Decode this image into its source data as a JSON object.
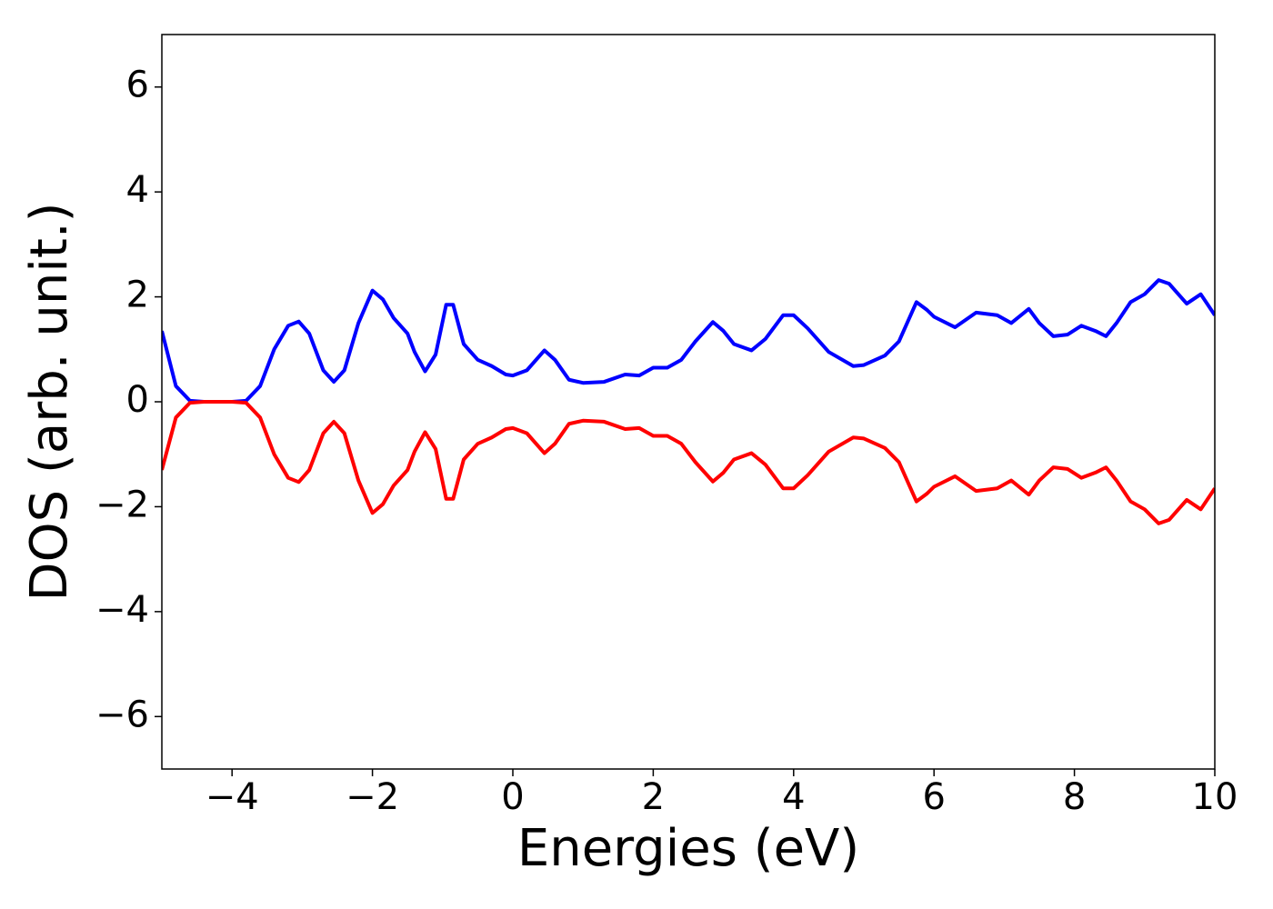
{
  "chart_data": {
    "type": "line",
    "xlabel": "Energies (eV)",
    "ylabel": "DOS (arb. unit.)",
    "x": [
      -5,
      -4.8,
      -4.6,
      -4.4,
      -4,
      -3.8,
      -3.6,
      -3.4,
      -3.2,
      -3.05,
      -2.9,
      -2.7,
      -2.55,
      -2.4,
      -2.2,
      -2,
      -1.85,
      -1.7,
      -1.5,
      -1.4,
      -1.25,
      -1.1,
      -0.95,
      -0.85,
      -0.7,
      -0.5,
      -0.3,
      -0.1,
      0,
      0.2,
      0.45,
      0.6,
      0.8,
      1,
      1.3,
      1.6,
      1.8,
      2,
      2.2,
      2.4,
      2.6,
      2.85,
      3,
      3.15,
      3.4,
      3.6,
      3.85,
      4,
      4.2,
      4.5,
      4.85,
      5,
      5.3,
      5.5,
      5.75,
      5.9,
      6,
      6.3,
      6.6,
      6.9,
      7.1,
      7.35,
      7.5,
      7.7,
      7.9,
      8.1,
      8.3,
      8.45,
      8.6,
      8.8,
      9,
      9.2,
      9.35,
      9.6,
      9.8,
      10
    ],
    "series": [
      {
        "color": "#0000ff",
        "values": [
          1.35,
          0.3,
          0.02,
          0,
          0,
          0.02,
          0.3,
          1.0,
          1.45,
          1.53,
          1.3,
          0.6,
          0.38,
          0.6,
          1.5,
          2.12,
          1.95,
          1.6,
          1.3,
          0.95,
          0.58,
          0.9,
          1.85,
          1.85,
          1.1,
          0.8,
          0.68,
          0.52,
          0.5,
          0.6,
          0.98,
          0.8,
          0.42,
          0.36,
          0.38,
          0.52,
          0.5,
          0.65,
          0.65,
          0.8,
          1.15,
          1.52,
          1.35,
          1.1,
          0.98,
          1.2,
          1.65,
          1.65,
          1.4,
          0.95,
          0.68,
          0.7,
          0.88,
          1.15,
          1.9,
          1.75,
          1.62,
          1.42,
          1.7,
          1.65,
          1.5,
          1.77,
          1.5,
          1.25,
          1.28,
          1.45,
          1.35,
          1.25,
          1.5,
          1.9,
          2.05,
          2.32,
          2.25,
          1.87,
          2.05,
          1.65
        ]
      },
      {
        "color": "#ff0000",
        "values": [
          -1.3,
          -0.3,
          -0.02,
          0,
          0,
          -0.02,
          -0.3,
          -1.0,
          -1.45,
          -1.53,
          -1.3,
          -0.6,
          -0.38,
          -0.6,
          -1.5,
          -2.12,
          -1.95,
          -1.6,
          -1.3,
          -0.95,
          -0.58,
          -0.9,
          -1.85,
          -1.85,
          -1.1,
          -0.8,
          -0.68,
          -0.52,
          -0.5,
          -0.6,
          -0.98,
          -0.8,
          -0.42,
          -0.36,
          -0.38,
          -0.52,
          -0.5,
          -0.65,
          -0.65,
          -0.8,
          -1.15,
          -1.52,
          -1.35,
          -1.1,
          -0.98,
          -1.2,
          -1.65,
          -1.65,
          -1.4,
          -0.95,
          -0.68,
          -0.7,
          -0.88,
          -1.15,
          -1.9,
          -1.75,
          -1.62,
          -1.42,
          -1.7,
          -1.65,
          -1.5,
          -1.77,
          -1.5,
          -1.25,
          -1.28,
          -1.45,
          -1.35,
          -1.25,
          -1.5,
          -1.9,
          -2.05,
          -2.32,
          -2.25,
          -1.87,
          -2.05,
          -1.65
        ]
      }
    ],
    "xlim": [
      -5,
      10
    ],
    "xticks": [
      {
        "value": -4,
        "label": "−4"
      },
      {
        "value": -2,
        "label": "−2"
      },
      0,
      2,
      4,
      6,
      8,
      10
    ],
    "ylim": [
      -7,
      7
    ],
    "yticks": [
      {
        "value": -6,
        "label": "−6"
      },
      {
        "value": -4,
        "label": "−4"
      },
      {
        "value": -2,
        "label": "−2"
      },
      0,
      2,
      4,
      6
    ],
    "grid": false
  }
}
